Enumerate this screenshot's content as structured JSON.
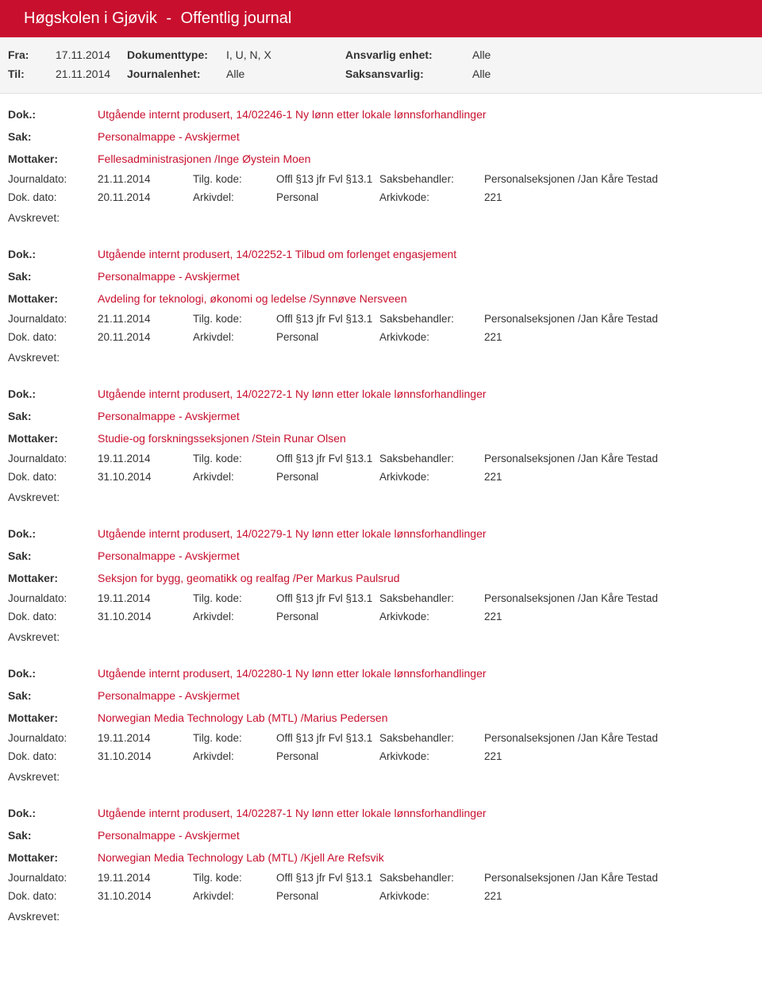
{
  "header": {
    "org": "Høgskolen i Gjøvik",
    "title": "Offentlig journal"
  },
  "filter": {
    "fra_label": "Fra:",
    "fra_val": "17.11.2014",
    "til_label": "Til:",
    "til_val": "21.11.2014",
    "doktype_label": "Dokumenttype:",
    "doktype_val": "I, U, N, X",
    "journalenhet_label": "Journalenhet:",
    "journalenhet_val": "Alle",
    "ansvarlig_label": "Ansvarlig enhet:",
    "ansvarlig_val": "Alle",
    "saksansvarlig_label": "Saksansvarlig:",
    "saksansvarlig_val": "Alle"
  },
  "labels": {
    "dok": "Dok.:",
    "sak": "Sak:",
    "mottaker": "Mottaker:",
    "journaldato": "Journaldato:",
    "dokdato": "Dok. dato:",
    "tilgkode": "Tilg. kode:",
    "arkivdel": "Arkivdel:",
    "saksbehandler": "Saksbehandler:",
    "arkivkode": "Arkivkode:",
    "avskrevet": "Avskrevet:"
  },
  "entries": [
    {
      "dok": "Utgående internt produsert, 14/02246-1 Ny lønn etter lokale lønnsforhandlinger",
      "sak": "Personalmappe - Avskjermet",
      "mottaker": "Fellesadministrasjonen /Inge Øystein Moen",
      "journaldato": "21.11.2014",
      "dokdato": "20.11.2014",
      "tilgkode": "Offl §13 jfr Fvl §13.1",
      "arkivdel": "Personal",
      "saksbehandler": "Personalseksjonen /Jan Kåre Testad",
      "arkivkode": "221"
    },
    {
      "dok": "Utgående internt produsert, 14/02252-1 Tilbud om forlenget engasjement",
      "sak": "Personalmappe - Avskjermet",
      "mottaker": "Avdeling for teknologi, økonomi og ledelse /Synnøve Nersveen",
      "journaldato": "21.11.2014",
      "dokdato": "20.11.2014",
      "tilgkode": "Offl §13 jfr Fvl §13.1",
      "arkivdel": "Personal",
      "saksbehandler": "Personalseksjonen /Jan Kåre Testad",
      "arkivkode": "221"
    },
    {
      "dok": "Utgående internt produsert, 14/02272-1 Ny lønn etter lokale lønnsforhandlinger",
      "sak": "Personalmappe - Avskjermet",
      "mottaker": "Studie-og forskningsseksjonen /Stein Runar Olsen",
      "journaldato": "19.11.2014",
      "dokdato": "31.10.2014",
      "tilgkode": "Offl §13 jfr Fvl §13.1",
      "arkivdel": "Personal",
      "saksbehandler": "Personalseksjonen /Jan Kåre Testad",
      "arkivkode": "221"
    },
    {
      "dok": "Utgående internt produsert, 14/02279-1 Ny lønn etter lokale lønnsforhandlinger",
      "sak": "Personalmappe - Avskjermet",
      "mottaker": "Seksjon for bygg, geomatikk og realfag /Per Markus Paulsrud",
      "journaldato": "19.11.2014",
      "dokdato": "31.10.2014",
      "tilgkode": "Offl §13 jfr Fvl §13.1",
      "arkivdel": "Personal",
      "saksbehandler": "Personalseksjonen /Jan Kåre Testad",
      "arkivkode": "221"
    },
    {
      "dok": "Utgående internt produsert, 14/02280-1 Ny lønn etter lokale lønnsforhandlinger",
      "sak": "Personalmappe - Avskjermet",
      "mottaker": "Norwegian Media Technology Lab (MTL) /Marius Pedersen",
      "journaldato": "19.11.2014",
      "dokdato": "31.10.2014",
      "tilgkode": "Offl §13 jfr Fvl §13.1",
      "arkivdel": "Personal",
      "saksbehandler": "Personalseksjonen /Jan Kåre Testad",
      "arkivkode": "221"
    },
    {
      "dok": "Utgående internt produsert, 14/02287-1 Ny lønn etter lokale lønnsforhandlinger",
      "sak": "Personalmappe - Avskjermet",
      "mottaker": "Norwegian Media Technology Lab (MTL) /Kjell Are Refsvik",
      "journaldato": "19.11.2014",
      "dokdato": "31.10.2014",
      "tilgkode": "Offl §13 jfr Fvl §13.1",
      "arkivdel": "Personal",
      "saksbehandler": "Personalseksjonen /Jan Kåre Testad",
      "arkivkode": "221"
    }
  ]
}
